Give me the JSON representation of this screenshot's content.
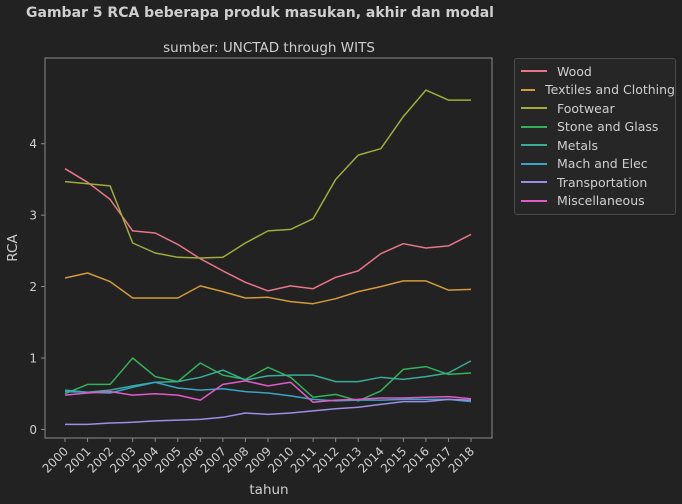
{
  "figure_title": "Gambar 5 RCA beberapa produk masukan, akhir dan modal",
  "chart_data": {
    "type": "line",
    "title": "sumber: UNCTAD through WITS",
    "xlabel": "tahun",
    "ylabel": "RCA",
    "x": [
      "2000",
      "2001",
      "2002",
      "2003",
      "2004",
      "2005",
      "2006",
      "2007",
      "2008",
      "2009",
      "2010",
      "2011",
      "2012",
      "2013",
      "2014",
      "2015",
      "2016",
      "2017",
      "2018"
    ],
    "yticks": [
      0,
      1,
      2,
      3,
      4
    ],
    "ylim": [
      -0.12,
      5.2
    ],
    "grid": false,
    "legend_position": "outside-right",
    "series": [
      {
        "name": "Wood",
        "color": "#e8758a",
        "values": [
          3.65,
          3.46,
          3.22,
          2.78,
          2.75,
          2.59,
          2.39,
          2.22,
          2.06,
          1.94,
          2.01,
          1.97,
          2.13,
          2.22,
          2.46,
          2.6,
          2.54,
          2.57,
          2.73
        ]
      },
      {
        "name": "Textiles and Clothing",
        "color": "#d39a3b",
        "values": [
          2.12,
          2.19,
          2.07,
          1.84,
          1.84,
          1.84,
          2.01,
          1.93,
          1.84,
          1.85,
          1.79,
          1.76,
          1.83,
          1.93,
          2.0,
          2.08,
          2.08,
          1.95,
          1.96
        ]
      },
      {
        "name": "Footwear",
        "color": "#a0ad3a",
        "values": [
          3.47,
          3.44,
          3.41,
          2.61,
          2.47,
          2.41,
          2.4,
          2.41,
          2.61,
          2.78,
          2.8,
          2.95,
          3.5,
          3.84,
          3.93,
          4.38,
          4.75,
          4.61,
          4.61
        ]
      },
      {
        "name": "Stone and Glass",
        "color": "#35b05a",
        "values": [
          0.5,
          0.63,
          0.63,
          1.0,
          0.74,
          0.67,
          0.93,
          0.76,
          0.7,
          0.87,
          0.73,
          0.45,
          0.49,
          0.4,
          0.54,
          0.84,
          0.88,
          0.77,
          0.79
        ]
      },
      {
        "name": "Metals",
        "color": "#38ad96",
        "values": [
          0.55,
          0.52,
          0.55,
          0.61,
          0.66,
          0.67,
          0.73,
          0.83,
          0.69,
          0.75,
          0.76,
          0.76,
          0.67,
          0.67,
          0.73,
          0.7,
          0.74,
          0.79,
          0.96
        ]
      },
      {
        "name": "Mach and Elec",
        "color": "#3aa3c6",
        "values": [
          0.53,
          0.52,
          0.51,
          0.59,
          0.66,
          0.58,
          0.55,
          0.57,
          0.53,
          0.51,
          0.47,
          0.42,
          0.4,
          0.41,
          0.41,
          0.42,
          0.42,
          0.42,
          0.39
        ]
      },
      {
        "name": "Transportation",
        "color": "#9c8ee6",
        "values": [
          0.07,
          0.07,
          0.09,
          0.1,
          0.12,
          0.13,
          0.14,
          0.17,
          0.23,
          0.21,
          0.23,
          0.26,
          0.29,
          0.31,
          0.35,
          0.39,
          0.39,
          0.42,
          0.41
        ]
      },
      {
        "name": "Miscellaneous",
        "color": "#e05bc8",
        "values": [
          0.48,
          0.51,
          0.53,
          0.48,
          0.5,
          0.48,
          0.41,
          0.63,
          0.68,
          0.61,
          0.66,
          0.38,
          0.41,
          0.42,
          0.44,
          0.44,
          0.45,
          0.46,
          0.43
        ]
      }
    ]
  }
}
